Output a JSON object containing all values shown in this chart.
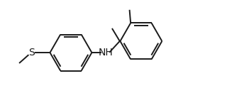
{
  "background_color": "#ffffff",
  "line_color": "#1a1a1a",
  "line_width": 1.4,
  "font_size_S": 10,
  "font_size_NH": 10,
  "figsize": [
    3.27,
    1.45
  ],
  "dpi": 100,
  "xlim": [
    0,
    10.5
  ],
  "ylim": [
    0,
    4.5
  ]
}
